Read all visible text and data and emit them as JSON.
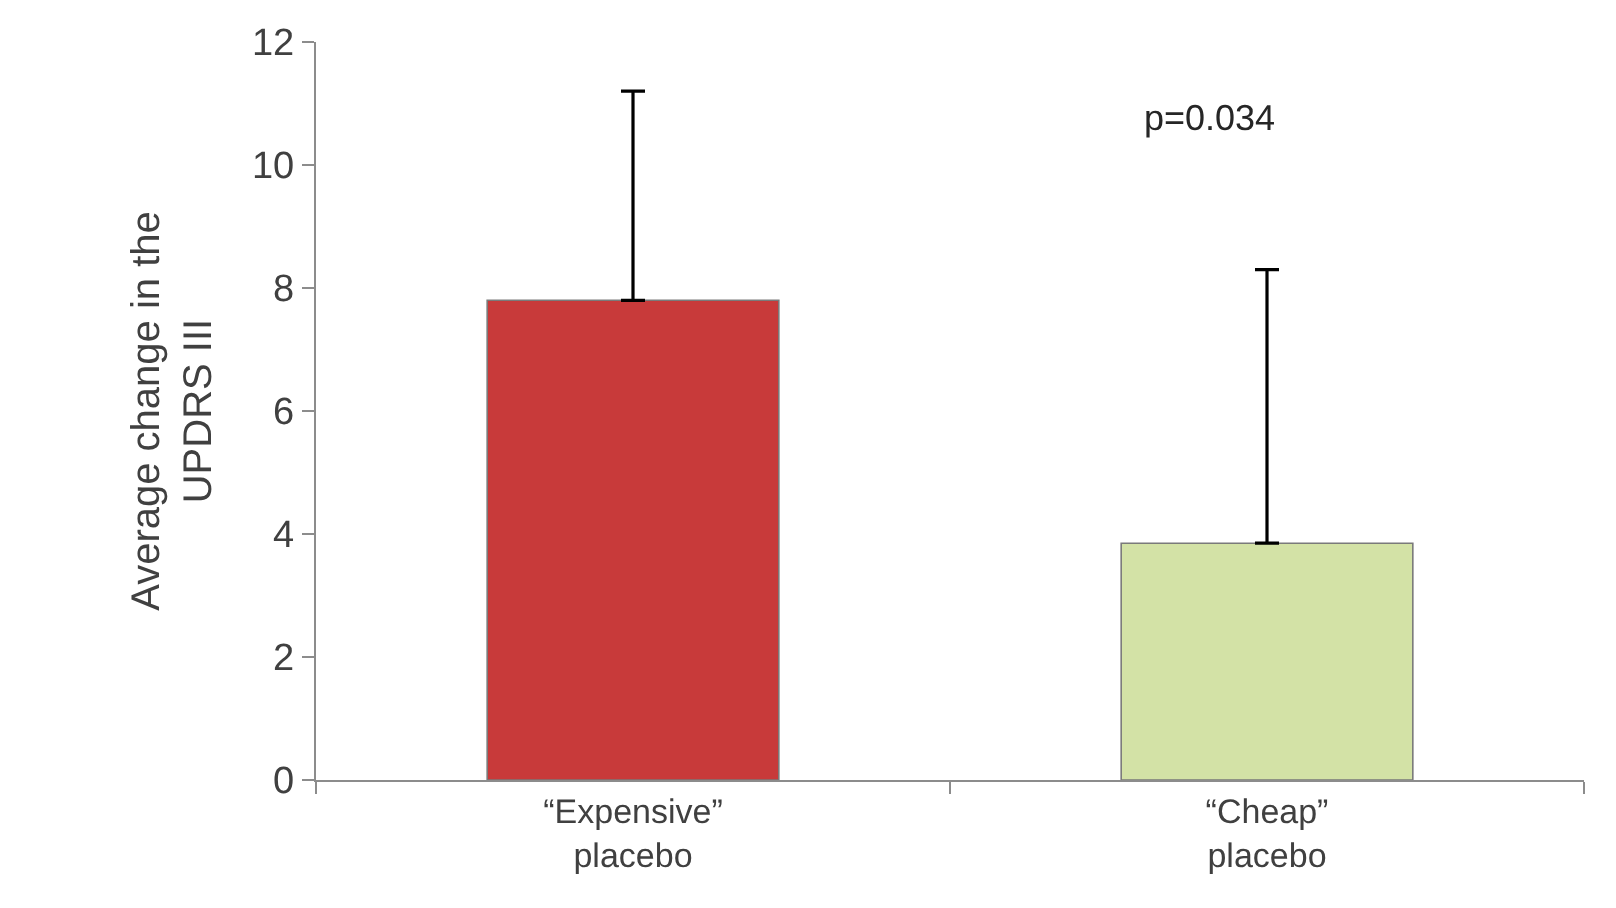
{
  "chart_data": {
    "type": "bar",
    "ylabel": "Average change in the\nUPDRS III",
    "categories": [
      "“Expensive”\nplacebo",
      "“Cheap”\nplacebo"
    ],
    "values": [
      7.8,
      3.85
    ],
    "colors": [
      "#c83a3a",
      "#d3e2a6"
    ],
    "errors": [
      [
        7.8,
        11.2
      ],
      [
        3.85,
        8.3
      ]
    ],
    "ylim": [
      0,
      12
    ],
    "yticks": [
      0,
      2,
      4,
      6,
      8,
      10,
      12
    ],
    "annotations": [
      "p=0.034"
    ]
  }
}
